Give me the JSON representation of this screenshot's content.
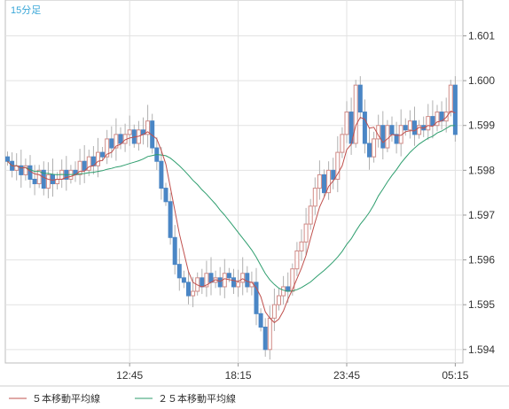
{
  "chart_data": {
    "type": "candlestick",
    "timeframe_label": "15分足",
    "ylim": [
      1.5937,
      1.6018
    ],
    "y_ticks": [
      "1.594",
      "1.595",
      "1.596",
      "1.597",
      "1.598",
      "1.599",
      "1.600",
      "1.601"
    ],
    "x_ticks": [
      {
        "index": 27,
        "label": "12:45"
      },
      {
        "index": 51,
        "label": "18:15"
      },
      {
        "index": 75,
        "label": "23:45"
      },
      {
        "index": 99,
        "label": "05:15"
      }
    ],
    "legend": [
      {
        "name": "５本移動平均線",
        "color": "#c0504d"
      },
      {
        "name": "２５本移動平均線",
        "color": "#2e9e6e"
      }
    ],
    "colors": {
      "up": "#d08a86",
      "down": "#4a86c5",
      "wick": "#b0b0b0",
      "grid": "#e2e2e2",
      "ma5": "#c0504d",
      "ma25": "#2e9e6e"
    },
    "close": [
      1.5982,
      1.598,
      1.5981,
      1.5979,
      1.5981,
      1.5978,
      1.5977,
      1.598,
      1.5976,
      1.5979,
      1.5977,
      1.5978,
      1.598,
      1.5978,
      1.598,
      1.5979,
      1.5982,
      1.598,
      1.5983,
      1.5981,
      1.5984,
      1.5983,
      1.5987,
      1.5985,
      1.5988,
      1.5986,
      1.5988,
      1.5989,
      1.5986,
      1.5989,
      1.5988,
      1.5991,
      1.5985,
      1.5982,
      1.5976,
      1.5973,
      1.5965,
      1.5959,
      1.5956,
      1.5955,
      1.5952,
      1.5953,
      1.5956,
      1.5954,
      1.5957,
      1.5955,
      1.5956,
      1.5954,
      1.5957,
      1.5956,
      1.5954,
      1.5955,
      1.5957,
      1.5954,
      1.5955,
      1.5948,
      1.5945,
      1.594,
      1.5947,
      1.595,
      1.5952,
      1.5954,
      1.5953,
      1.5958,
      1.5962,
      1.5964,
      1.5968,
      1.5972,
      1.5976,
      1.5979,
      1.5975,
      1.598,
      1.5978,
      1.5984,
      1.5988,
      1.5993,
      1.5986,
      1.5999,
      1.5993,
      1.5986,
      1.5983,
      1.5987,
      1.599,
      1.5985,
      1.599,
      1.5988,
      1.5986,
      1.599,
      1.5989,
      1.5991,
      1.5988,
      1.599,
      1.5989,
      1.5992,
      1.599,
      1.5993,
      1.5991,
      1.5993,
      1.5999,
      1.5988
    ]
  }
}
